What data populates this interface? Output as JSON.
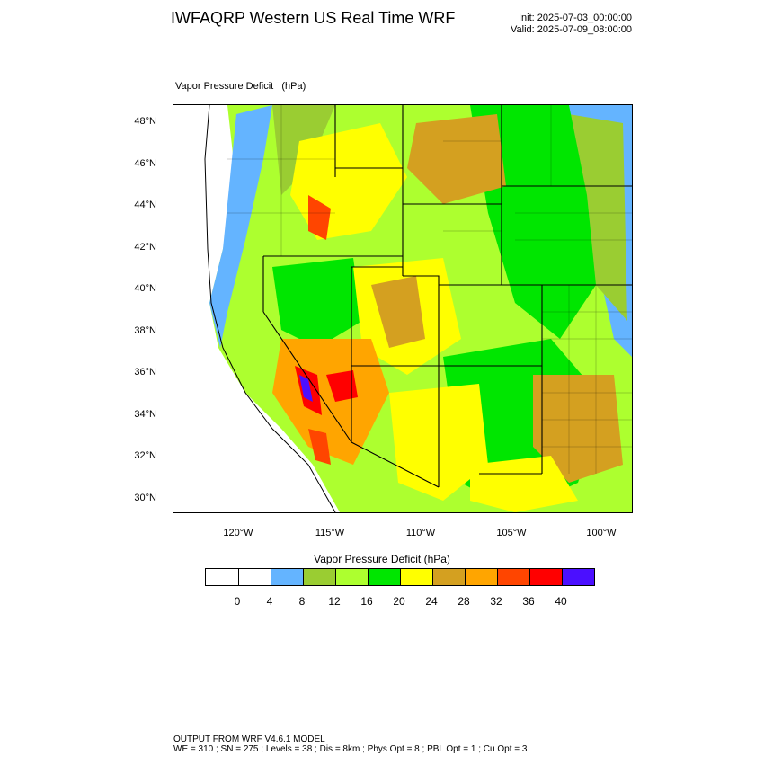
{
  "header": {
    "title": "IWFAQRP Western US Real Time WRF",
    "init": "Init: 2025-07-03_00:00:00",
    "valid": "Valid: 2025-07-09_08:00:00"
  },
  "plot": {
    "field_label": "Vapor Pressure Deficit   (hPa)",
    "lat_labels": [
      "48°N",
      "46°N",
      "44°N",
      "42°N",
      "40°N",
      "38°N",
      "36°N",
      "34°N",
      "32°N",
      "30°N"
    ],
    "lon_labels": [
      "120°W",
      "115°W",
      "110°W",
      "105°W",
      "100°W"
    ]
  },
  "colorbar": {
    "title": "Vapor Pressure Deficit  (hPa)",
    "colors": [
      "#ffffff",
      "#ffffff",
      "#64b4ff",
      "#9acd32",
      "#adff2f",
      "#00e600",
      "#ffff00",
      "#d4a020",
      "#ffa500",
      "#ff4500",
      "#ff0000",
      "#4b0fff"
    ],
    "labels": [
      "0",
      "4",
      "8",
      "12",
      "16",
      "20",
      "24",
      "28",
      "32",
      "36",
      "40"
    ]
  },
  "footer": {
    "line1": "OUTPUT FROM WRF V4.6.1 MODEL",
    "line2": "WE = 310 ; SN = 275 ; Levels = 38 ; Dis = 8km ; Phys Opt = 8 ; PBL Opt = 1 ; Cu Opt = 3"
  }
}
